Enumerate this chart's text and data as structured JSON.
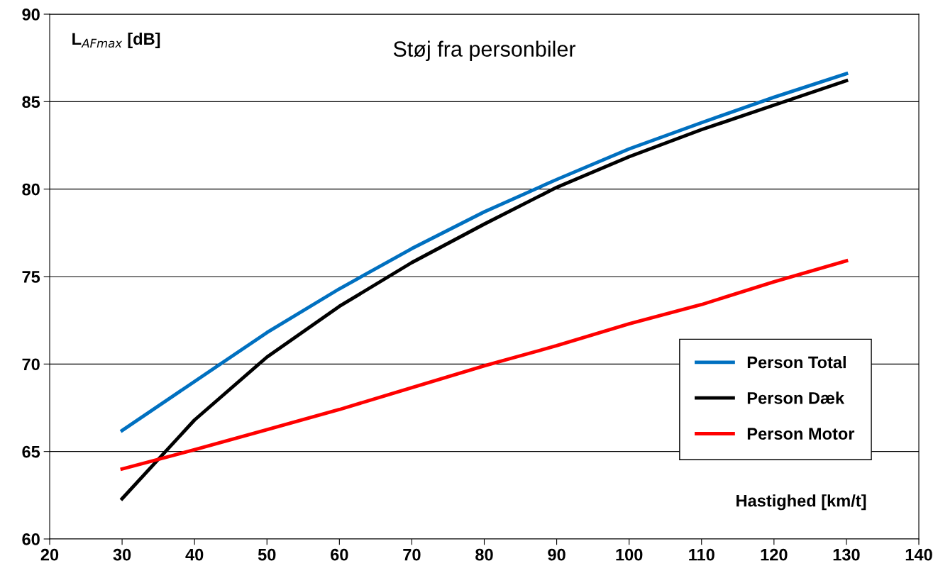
{
  "chart_data": {
    "type": "line",
    "title": "Støj fra personbiler",
    "ylabel": "L$_{AFmax}$ [dB]",
    "xlabel": "Hastighed [km/t]",
    "x": [
      30,
      40,
      50,
      60,
      70,
      80,
      90,
      100,
      110,
      120,
      130
    ],
    "series": [
      {
        "name": "Person Total",
        "color": "#0070c0",
        "values": [
          66.2,
          69.0,
          71.8,
          74.3,
          76.6,
          78.7,
          80.55,
          82.3,
          83.8,
          85.25,
          86.6
        ]
      },
      {
        "name": "Person Dæk",
        "color": "#000000",
        "values": [
          62.3,
          66.8,
          70.4,
          73.3,
          75.8,
          78.0,
          80.1,
          81.85,
          83.4,
          84.8,
          86.2
        ]
      },
      {
        "name": "Person Motor",
        "color": "#ff0000",
        "values": [
          64.0,
          65.1,
          66.25,
          67.4,
          68.65,
          69.9,
          71.05,
          72.3,
          73.4,
          74.7,
          75.9
        ]
      }
    ],
    "xlim": [
      20,
      140
    ],
    "xticks": [
      20,
      30,
      40,
      50,
      60,
      70,
      80,
      90,
      100,
      110,
      120,
      130,
      140
    ],
    "ylim": [
      60,
      90
    ],
    "yticks": [
      60,
      65,
      70,
      75,
      80,
      85,
      90
    ],
    "grid": "y",
    "legend": "right",
    "marker": "none",
    "line_style": "solid"
  }
}
